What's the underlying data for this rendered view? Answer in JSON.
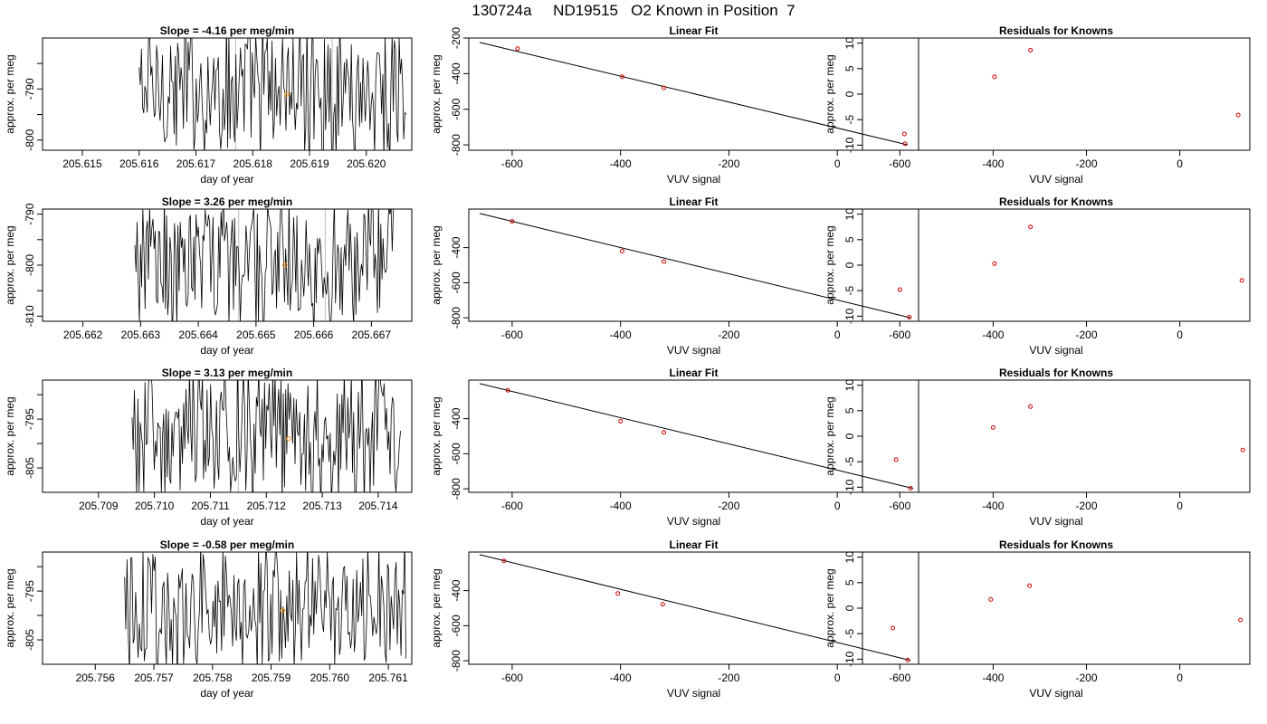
{
  "page_title": "130724a     ND19515   O2 Known in Position  7",
  "colors": {
    "trace": "#000000",
    "marker_orange": "#ff8c00",
    "marker_red": "#cc0000",
    "gray_line": "#bebebe"
  },
  "chart_data": [
    {
      "type": "line",
      "title": "Slope =  -4.16  per meg/min",
      "xlabel": "day of year",
      "ylabel": "approx. per meg",
      "xlim": [
        205.6143,
        205.6208
      ],
      "ylim": [
        -802,
        -780
      ],
      "xticks": [
        205.615,
        205.616,
        205.617,
        205.618,
        205.619,
        205.62
      ],
      "xtick_labels": [
        "205.615",
        "205.616",
        "205.617",
        "205.618",
        "205.619",
        "205.620"
      ],
      "yticks": [
        -800,
        -795,
        -790,
        -785
      ],
      "ytick_labels": [
        "-800",
        "",
        "-790",
        ""
      ],
      "trace_range": [
        205.616,
        205.6207
      ],
      "trace_amplitude": [
        -805,
        -775
      ],
      "mean_point": {
        "x": 205.6186,
        "y": -791
      },
      "gray_lines": [
        205.6177,
        205.6194
      ]
    },
    {
      "type": "scatter",
      "title": "Linear Fit",
      "xlabel": "VUV signal",
      "ylabel": "approx. per meg",
      "xlim": [
        -680,
        150
      ],
      "ylim": [
        -830,
        -200
      ],
      "xticks": [
        -600,
        -400,
        -200,
        0
      ],
      "xtick_labels": [
        "-600",
        "-400",
        "-200",
        "0"
      ],
      "yticks": [
        -800,
        -600,
        -400,
        -200
      ],
      "ytick_labels": [
        "-800",
        "-600",
        "-400",
        "-200"
      ],
      "points": [
        {
          "x": -590,
          "y": -260
        },
        {
          "x": -397,
          "y": -417
        },
        {
          "x": -320,
          "y": -480
        },
        {
          "x": 125,
          "y": -793
        }
      ],
      "fit_line": [
        {
          "x": -660,
          "y": -225
        },
        {
          "x": 130,
          "y": -800
        }
      ]
    },
    {
      "type": "scatter",
      "title": "Residuals for Knowns",
      "xlabel": "VUV signal",
      "ylabel": "approx. per meg",
      "xlim": [
        -680,
        150
      ],
      "ylim": [
        -11,
        11
      ],
      "xticks": [
        -600,
        -400,
        -200,
        0
      ],
      "xtick_labels": [
        "-600",
        "-400",
        "-200",
        "0"
      ],
      "yticks": [
        -10,
        -5,
        0,
        5,
        10
      ],
      "ytick_labels": [
        "-10",
        "-5",
        "0",
        "5",
        "10"
      ],
      "points": [
        {
          "x": -590,
          "y": -7.8
        },
        {
          "x": -397,
          "y": 3.4
        },
        {
          "x": -320,
          "y": 8.6
        },
        {
          "x": 125,
          "y": -4.1
        }
      ]
    },
    {
      "type": "line",
      "title": "Slope =  3.26  per meg/min",
      "xlabel": "day of year",
      "ylabel": "approx. per meg",
      "xlim": [
        205.6613,
        205.6677
      ],
      "ylim": [
        -811,
        -789
      ],
      "xticks": [
        205.662,
        205.663,
        205.664,
        205.665,
        205.666,
        205.667
      ],
      "xtick_labels": [
        "205.662",
        "205.663",
        "205.664",
        "205.665",
        "205.666",
        "205.667"
      ],
      "yticks": [
        -810,
        -805,
        -800,
        -795,
        -790
      ],
      "ytick_labels": [
        "-810",
        "",
        "-800",
        "",
        "-790"
      ],
      "trace_range": [
        205.6629,
        205.6674
      ],
      "trace_amplitude": [
        -815,
        -785
      ],
      "mean_point": {
        "x": 205.6655,
        "y": -800
      },
      "gray_lines": [
        205.6647,
        205.6662
      ]
    },
    {
      "type": "scatter",
      "title": "Linear Fit",
      "xlabel": "VUV signal",
      "ylabel": "approx. per meg",
      "xlim": [
        -680,
        150
      ],
      "ylim": [
        -820,
        -180
      ],
      "xticks": [
        -600,
        -400,
        -200,
        0
      ],
      "xtick_labels": [
        "-600",
        "-400",
        "-200",
        "0"
      ],
      "yticks": [
        -800,
        -600,
        -400
      ],
      "ytick_labels": [
        "-800",
        "-600",
        "-400"
      ],
      "points": [
        {
          "x": -600,
          "y": -250
        },
        {
          "x": -397,
          "y": -420
        },
        {
          "x": -320,
          "y": -480
        },
        {
          "x": 133,
          "y": -797
        }
      ],
      "fit_line": [
        {
          "x": -660,
          "y": -205
        },
        {
          "x": 135,
          "y": -800
        }
      ]
    },
    {
      "type": "scatter",
      "title": "Residuals for Knowns",
      "xlabel": "VUV signal",
      "ylabel": "approx. per meg",
      "xlim": [
        -680,
        150
      ],
      "ylim": [
        -11,
        11
      ],
      "xticks": [
        -600,
        -400,
        -200,
        0
      ],
      "xtick_labels": [
        "-600",
        "-400",
        "-200",
        "0"
      ],
      "yticks": [
        -10,
        -5,
        0,
        5,
        10
      ],
      "ytick_labels": [
        "-10",
        "-5",
        "0",
        "5",
        "10"
      ],
      "points": [
        {
          "x": -600,
          "y": -4.8
        },
        {
          "x": -397,
          "y": 0.3
        },
        {
          "x": -320,
          "y": 7.5
        },
        {
          "x": 133,
          "y": -3.0
        }
      ]
    },
    {
      "type": "line",
      "title": "Slope =  3.13  per meg/min",
      "xlabel": "day of year",
      "ylabel": "approx. per meg",
      "xlim": [
        205.708,
        205.7146
      ],
      "ylim": [
        -810,
        -787
      ],
      "xticks": [
        205.709,
        205.71,
        205.711,
        205.712,
        205.713,
        205.714
      ],
      "xtick_labels": [
        "205.709",
        "205.710",
        "205.711",
        "205.712",
        "205.713",
        "205.714"
      ],
      "yticks": [
        -805,
        -800,
        -795,
        -790
      ],
      "ytick_labels": [
        "-805",
        "",
        "-795",
        ""
      ],
      "trace_range": [
        205.7096,
        205.7144
      ],
      "trace_amplitude": [
        -813,
        -783
      ],
      "mean_point": {
        "x": 205.7124,
        "y": -799
      },
      "gray_lines": [
        205.7115
      ]
    },
    {
      "type": "scatter",
      "title": "Linear Fit",
      "xlabel": "VUV signal",
      "ylabel": "approx. per meg",
      "xlim": [
        -680,
        150
      ],
      "ylim": [
        -820,
        -180
      ],
      "xticks": [
        -600,
        -400,
        -200,
        0
      ],
      "xtick_labels": [
        "-600",
        "-400",
        "-200",
        "0"
      ],
      "yticks": [
        -800,
        -600,
        -400
      ],
      "ytick_labels": [
        "-800",
        "-600",
        "-400"
      ],
      "points": [
        {
          "x": -608,
          "y": -238
        },
        {
          "x": -400,
          "y": -415
        },
        {
          "x": -320,
          "y": -478
        },
        {
          "x": 135,
          "y": -797
        }
      ],
      "fit_line": [
        {
          "x": -660,
          "y": -200
        },
        {
          "x": 140,
          "y": -798
        }
      ]
    },
    {
      "type": "scatter",
      "title": "Residuals for Knowns",
      "xlabel": "VUV signal",
      "ylabel": "approx. per meg",
      "xlim": [
        -680,
        150
      ],
      "ylim": [
        -11,
        11
      ],
      "xticks": [
        -600,
        -400,
        -200,
        0
      ],
      "xtick_labels": [
        "-600",
        "-400",
        "-200",
        "0"
      ],
      "yticks": [
        -10,
        -5,
        0,
        5,
        10
      ],
      "ytick_labels": [
        "-10",
        "-5",
        "0",
        "5",
        "10"
      ],
      "points": [
        {
          "x": -608,
          "y": -4.6
        },
        {
          "x": -400,
          "y": 1.7
        },
        {
          "x": -320,
          "y": 5.8
        },
        {
          "x": 135,
          "y": -2.7
        }
      ]
    },
    {
      "type": "line",
      "title": "Slope =  -0.58  per meg/min",
      "xlabel": "day of year",
      "ylabel": "approx. per meg",
      "xlim": [
        205.7551,
        205.7614
      ],
      "ylim": [
        -810,
        -787
      ],
      "xticks": [
        205.756,
        205.757,
        205.758,
        205.759,
        205.76,
        205.761
      ],
      "xtick_labels": [
        "205.756",
        "205.757",
        "205.758",
        "205.759",
        "205.760",
        "205.761"
      ],
      "yticks": [
        -805,
        -800,
        -795,
        -790
      ],
      "ytick_labels": [
        "-805",
        "",
        "-795",
        ""
      ],
      "trace_range": [
        205.7565,
        205.7613
      ],
      "trace_amplitude": [
        -813,
        -783
      ],
      "mean_point": {
        "x": 205.7592,
        "y": -799
      },
      "gray_lines": []
    },
    {
      "type": "scatter",
      "title": "Linear Fit",
      "xlabel": "VUV signal",
      "ylabel": "approx. per meg",
      "xlim": [
        -680,
        150
      ],
      "ylim": [
        -820,
        -180
      ],
      "xticks": [
        -600,
        -400,
        -200,
        0
      ],
      "xtick_labels": [
        "-600",
        "-400",
        "-200",
        "0"
      ],
      "yticks": [
        -800,
        -600,
        -400
      ],
      "ytick_labels": [
        "-800",
        "-600",
        "-400"
      ],
      "points": [
        {
          "x": -615,
          "y": -230
        },
        {
          "x": -405,
          "y": -416
        },
        {
          "x": -322,
          "y": -478
        },
        {
          "x": 130,
          "y": -796
        }
      ],
      "fit_line": [
        {
          "x": -660,
          "y": -195
        },
        {
          "x": 135,
          "y": -798
        }
      ]
    },
    {
      "type": "scatter",
      "title": "Residuals for Knowns",
      "xlabel": "VUV signal",
      "ylabel": "approx. per meg",
      "xlim": [
        -680,
        150
      ],
      "ylim": [
        -11,
        11
      ],
      "xticks": [
        -600,
        -400,
        -200,
        0
      ],
      "xtick_labels": [
        "-600",
        "-400",
        "-200",
        "0"
      ],
      "yticks": [
        -10,
        -5,
        0,
        5,
        10
      ],
      "ytick_labels": [
        "-10",
        "-5",
        "0",
        "5",
        "10"
      ],
      "points": [
        {
          "x": -615,
          "y": -3.9
        },
        {
          "x": -405,
          "y": 1.7
        },
        {
          "x": -322,
          "y": 4.4
        },
        {
          "x": 130,
          "y": -2.3
        }
      ]
    }
  ]
}
